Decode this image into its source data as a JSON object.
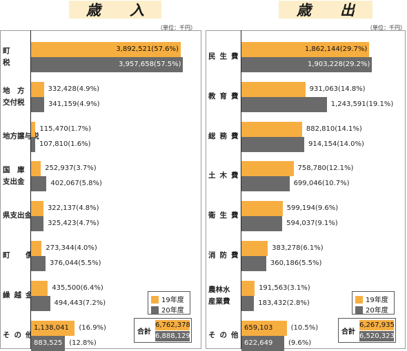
{
  "colors": {
    "fy19": "#f7ae41",
    "fy20": "#6a6a6a",
    "title_bg": "#fdeec9"
  },
  "chart_data": [
    {
      "type": "bar",
      "title": "歳　　入",
      "unit": "（単位：千円）",
      "categories": [
        [
          "町",
          "税"
        ],
        [
          "地　方",
          "交付税"
        ],
        [
          "地方譲与税"
        ],
        [
          "国　庫",
          "支出金"
        ],
        [
          "県支出金"
        ],
        [
          "町　債"
        ],
        [
          "繰越金"
        ],
        [
          "その他"
        ]
      ],
      "series": [
        {
          "name": "19年度",
          "values": [
            3892521,
            332428,
            115470,
            252937,
            322137,
            273344,
            435500,
            1138041
          ],
          "labels": [
            "3,892,521(57.6%)",
            "332,428(4.9%)",
            "115,470(1.7%)",
            "252,937(3.7%)",
            "322,137(4.8%)",
            "273,344(4.0%)",
            "435,500(6.4%)",
            "1,138,041"
          ],
          "extra": [
            "",
            "",
            "",
            "",
            "",
            "",
            "",
            "(16.9%)"
          ]
        },
        {
          "name": "20年度",
          "values": [
            3957658,
            341159,
            107810,
            402067,
            325423,
            376044,
            494443,
            883525
          ],
          "labels": [
            "3,957,658(57.5%)",
            "341,159(4.9%)",
            "107,810(1.6%)",
            "402,067(5.8%)",
            "325,423(4.7%)",
            "376,044(5.5%)",
            "494,443(7.2%)",
            "883,525"
          ],
          "extra": [
            "",
            "",
            "",
            "",
            "",
            "",
            "",
            "(12.8%)"
          ]
        }
      ],
      "inside": [
        true,
        false,
        false,
        false,
        false,
        false,
        false,
        true
      ],
      "xmax": 4200000,
      "total_label": "合計",
      "totals": [
        "6,762,378",
        "6,888,129"
      ]
    },
    {
      "type": "bar",
      "title": "歳　　出",
      "unit": "（単位：千円）",
      "categories": [
        [
          "民生費"
        ],
        [
          "教育費"
        ],
        [
          "総務費"
        ],
        [
          "土木費"
        ],
        [
          "衛生費"
        ],
        [
          "消防費"
        ],
        [
          "農林水",
          "産業費"
        ],
        [
          "その他"
        ]
      ],
      "series": [
        {
          "name": "19年度",
          "values": [
            1862144,
            931063,
            882810,
            758780,
            599194,
            383278,
            191563,
            659103
          ],
          "labels": [
            "1,862,144(29.7%)",
            "931,063(14.8%)",
            "882,810(14.1%)",
            "758,780(12.1%)",
            "599,194(9.6%)",
            "383,278(6.1%)",
            "191,563(3.1%)",
            "659,103"
          ],
          "extra": [
            "",
            "",
            "",
            "",
            "",
            "",
            "",
            "(10.5%)"
          ]
        },
        {
          "name": "20年度",
          "values": [
            1903228,
            1243591,
            914154,
            699046,
            594037,
            360186,
            183432,
            622649
          ],
          "labels": [
            "1,903,228(29.2%)",
            "1,243,591(19.1%)",
            "914,154(14.0%)",
            "699,046(10.7%)",
            "594,037(9.1%)",
            "360,186(5.5%)",
            "183,432(2.8%)",
            "622,649"
          ],
          "extra": [
            "",
            "",
            "",
            "",
            "",
            "",
            "",
            "(9.6%)"
          ]
        }
      ],
      "inside": [
        true,
        false,
        false,
        false,
        false,
        false,
        false,
        true
      ],
      "xmax": 2070000,
      "total_label": "合計",
      "totals": [
        "6,267,935",
        "6,520,323"
      ]
    }
  ]
}
